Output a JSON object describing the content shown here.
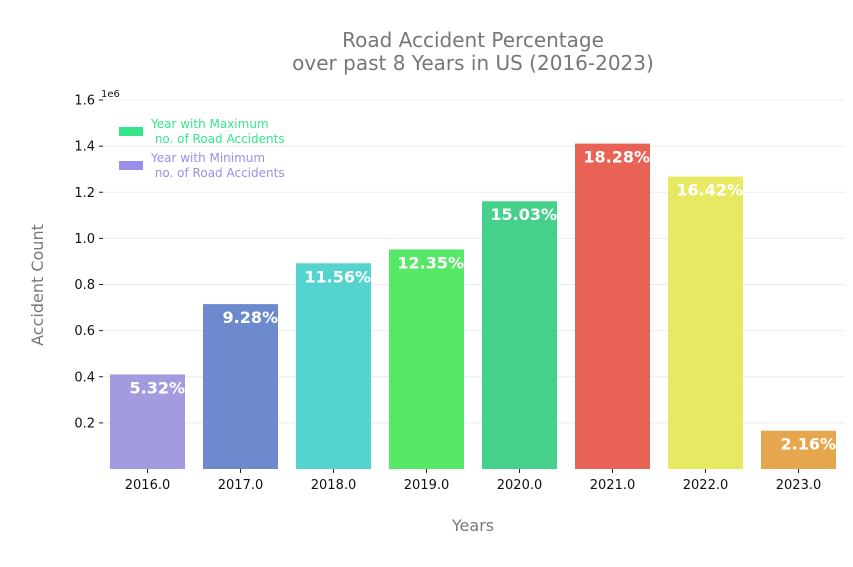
{
  "chart_data": {
    "type": "bar",
    "title": "Road Accident Percentage\nover past 8 Years in US (2016-2023)",
    "xlabel": "Years",
    "ylabel": "Accident Count",
    "y_offset_label": "1e6",
    "categories": [
      "2016.0",
      "2017.0",
      "2018.0",
      "2019.0",
      "2020.0",
      "2021.0",
      "2022.0",
      "2023.0"
    ],
    "values": [
      410000,
      715000,
      892000,
      952000,
      1161000,
      1411000,
      1268000,
      166000
    ],
    "data_labels": [
      "5.32%",
      "9.28%",
      "11.56%",
      "12.35%",
      "15.03%",
      "18.28%",
      "16.42%",
      "2.16%"
    ],
    "bar_colors": [
      "#a39be0",
      "#6d8acf",
      "#54d3cf",
      "#58e867",
      "#45d08b",
      "#e86355",
      "#e8e962",
      "#e6a64e"
    ],
    "ylim": [
      0,
      1600000
    ],
    "yticks": [
      200000,
      400000,
      600000,
      800000,
      1000000,
      1200000,
      1400000,
      1600000
    ],
    "ytick_labels": [
      "0.2",
      "0.4",
      "0.6",
      "0.8",
      "1.0",
      "1.2",
      "1.4",
      "1.6"
    ],
    "grid": true,
    "legend_position": "top-left",
    "legend": [
      {
        "label": "Year with Maximum\n no. of Road Accidents",
        "color": "#35e68b"
      },
      {
        "label": "Year with Minimum\n no. of Road Accidents",
        "color": "#9a8fe8"
      }
    ]
  }
}
